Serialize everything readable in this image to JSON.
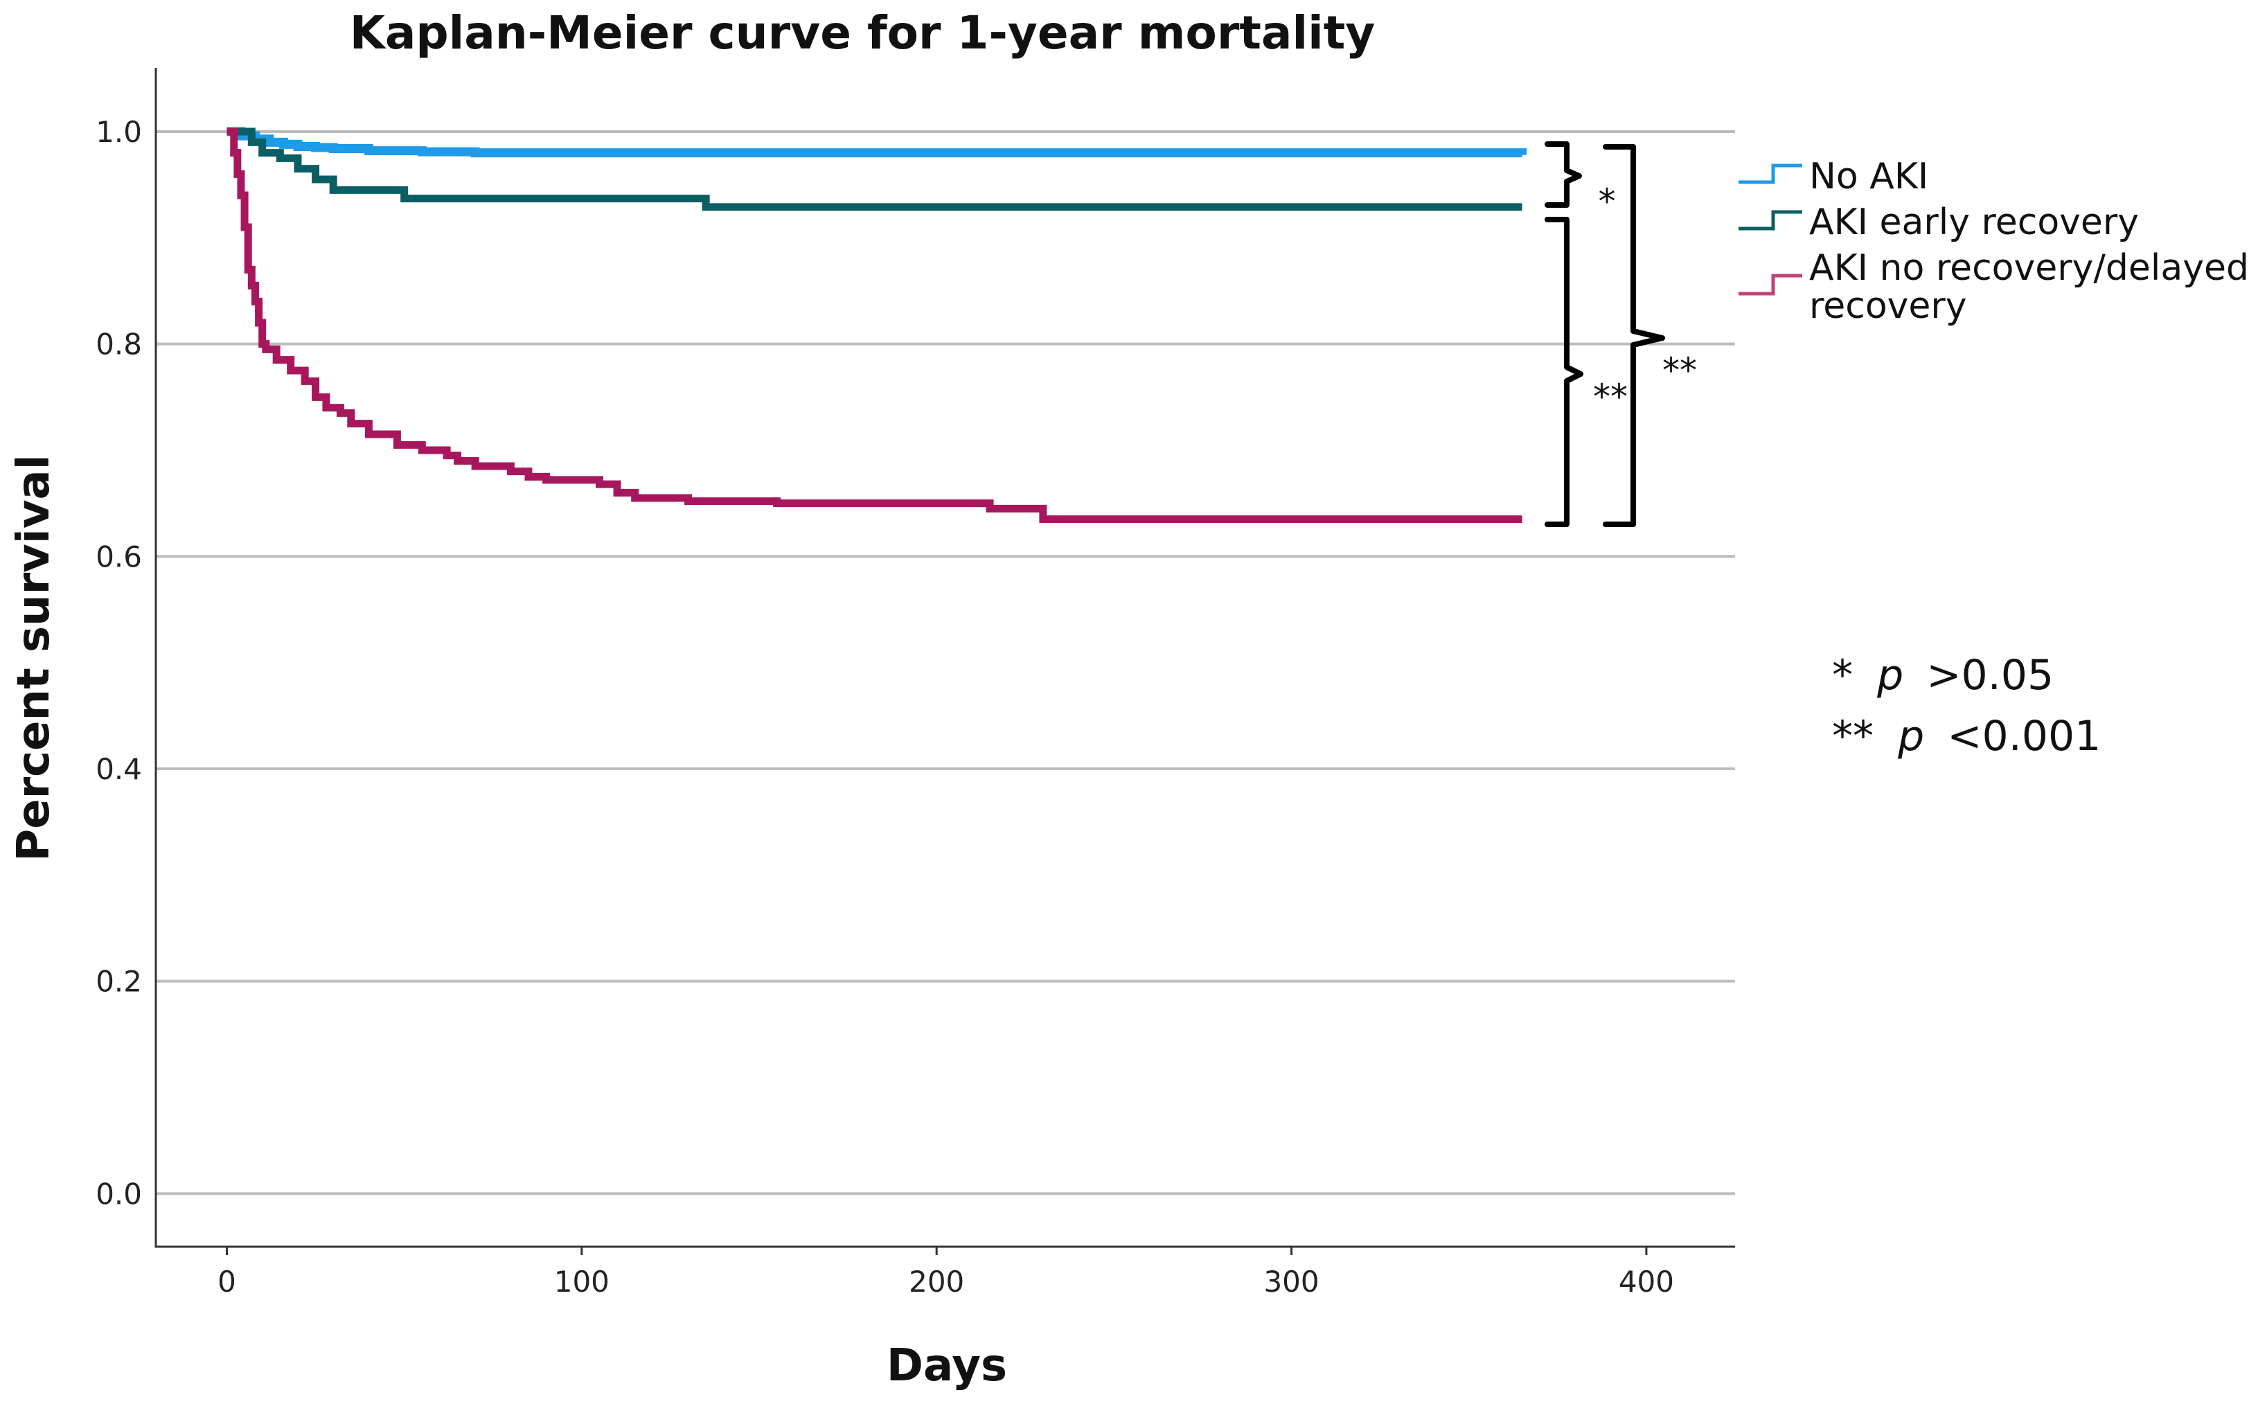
{
  "chart_data": {
    "type": "line",
    "title": "Kaplan-Meier curve for 1-year mortality",
    "xlabel": "Days",
    "ylabel": "Percent survival",
    "xlim": [
      -20,
      425
    ],
    "ylim": [
      -0.05,
      1.06
    ],
    "x_ticks": [
      0,
      100,
      200,
      300,
      400
    ],
    "y_ticks": [
      0.0,
      0.2,
      0.4,
      0.6,
      0.8,
      1.0
    ],
    "x_tick_labels": [
      "0",
      "100",
      "200",
      "300",
      "400"
    ],
    "y_tick_labels": [
      "0.0",
      "0.2",
      "0.4",
      "0.6",
      "0.8",
      "1.0"
    ],
    "grid": "horizontal",
    "series": [
      {
        "name": "No AKI",
        "color": "#1e9be8",
        "x": [
          0,
          4,
          8,
          12,
          16,
          20,
          25,
          30,
          40,
          55,
          70,
          365
        ],
        "y": [
          1.0,
          0.996,
          0.993,
          0.99,
          0.988,
          0.986,
          0.985,
          0.984,
          0.982,
          0.981,
          0.98,
          0.978
        ]
      },
      {
        "name": "AKI early recovery",
        "color": "#0b5e63",
        "x": [
          0,
          7,
          10,
          15,
          20,
          25,
          30,
          50,
          135,
          365
        ],
        "y": [
          1.0,
          0.99,
          0.98,
          0.975,
          0.965,
          0.955,
          0.945,
          0.937,
          0.929,
          0.929
        ]
      },
      {
        "name": "AKI no recovery/delayed recovery",
        "color": "#a8175e",
        "x": [
          0,
          2,
          3,
          4,
          5,
          6,
          7,
          8,
          9,
          10,
          11,
          14,
          18,
          22,
          25,
          28,
          32,
          35,
          40,
          48,
          55,
          62,
          65,
          70,
          80,
          85,
          90,
          105,
          110,
          115,
          130,
          155,
          185,
          215,
          230,
          365
        ],
        "y": [
          1.0,
          0.98,
          0.96,
          0.94,
          0.91,
          0.87,
          0.855,
          0.84,
          0.82,
          0.8,
          0.795,
          0.785,
          0.775,
          0.765,
          0.75,
          0.74,
          0.735,
          0.725,
          0.715,
          0.705,
          0.7,
          0.695,
          0.69,
          0.685,
          0.68,
          0.675,
          0.672,
          0.668,
          0.66,
          0.655,
          0.652,
          0.65,
          0.65,
          0.645,
          0.635,
          0.635
        ]
      }
    ],
    "legend_position": "right"
  },
  "legend": {
    "items": [
      "No AKI",
      "AKI early recovery",
      "AKI no recovery/delayed",
      "recovery"
    ]
  },
  "significance": {
    "brace_small_label": "*",
    "brace_middle_label": "**",
    "brace_outer_label": "**"
  },
  "notes": {
    "line1_stars": "*",
    "line1_p": "p",
    "line1_value": ">0.05",
    "line2_stars": "**",
    "line2_p": "p",
    "line2_value": "<0.001"
  }
}
